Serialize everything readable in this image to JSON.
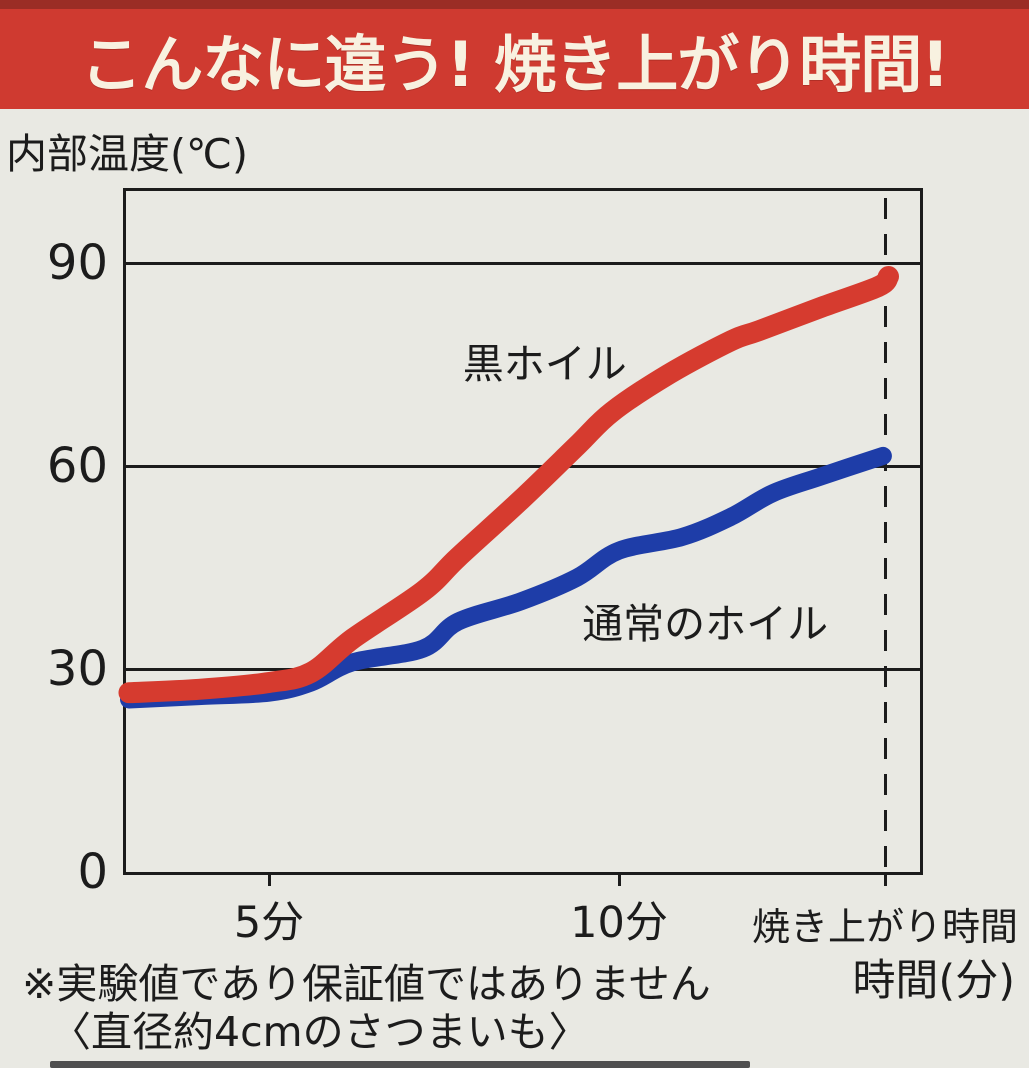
{
  "banner": {
    "title": "こんなに違う! 焼き上がり時間!",
    "bg_color": "#cf3a30",
    "top_strip_color": "#9b2d25",
    "text_color": "#f8f1e0"
  },
  "chart_data": {
    "type": "line",
    "title": "こんなに違う! 焼き上がり時間!",
    "ylabel": "内部温度(℃)",
    "xlabel": "時間(分)",
    "ylim": [
      0,
      100
    ],
    "yticks": [
      0,
      30,
      60,
      90
    ],
    "xticks": [
      {
        "value": 5,
        "label": "5分"
      },
      {
        "value": 10,
        "label": "10分"
      },
      {
        "value": 13.8,
        "label": "焼き上がり時間"
      }
    ],
    "grid": "horizontal-only",
    "dashed_vline_at": 13.8,
    "legend_position": "inline-labels",
    "background_color": "#e9e9e3",
    "axis_color": "#1c1c1c",
    "series": [
      {
        "name": "黒ホイル",
        "color": "#d63b2f",
        "stroke_width": 21,
        "points": [
          [
            3.0,
            26.5
          ],
          [
            4.0,
            27.0
          ],
          [
            5.0,
            28.0
          ],
          [
            5.6,
            29.5
          ],
          [
            6.2,
            34.5
          ],
          [
            7.2,
            41.5
          ],
          [
            7.7,
            46.5
          ],
          [
            8.6,
            55.0
          ],
          [
            9.4,
            63.0
          ],
          [
            9.9,
            68.0
          ],
          [
            10.7,
            73.5
          ],
          [
            11.6,
            78.5
          ],
          [
            12.0,
            80.0
          ],
          [
            12.9,
            83.5
          ],
          [
            13.7,
            86.5
          ],
          [
            13.85,
            88.0
          ]
        ]
      },
      {
        "name": "通常のホイル",
        "color": "#1e3da8",
        "stroke_width": 18,
        "points": [
          [
            3.0,
            25.5
          ],
          [
            4.0,
            26.0
          ],
          [
            5.0,
            26.5
          ],
          [
            5.6,
            28.0
          ],
          [
            6.2,
            31.0
          ],
          [
            7.2,
            33.0
          ],
          [
            7.7,
            37.0
          ],
          [
            8.6,
            40.0
          ],
          [
            9.4,
            43.5
          ],
          [
            10.0,
            47.5
          ],
          [
            10.9,
            49.5
          ],
          [
            11.6,
            52.5
          ],
          [
            12.2,
            56.0
          ],
          [
            12.9,
            58.5
          ],
          [
            13.77,
            61.5
          ]
        ]
      }
    ],
    "series_labels": [
      {
        "text": "黒ホイル",
        "x_min": 8.94,
        "temp": 75.7
      },
      {
        "text": "通常のホイル",
        "x_min": 11.23,
        "temp": 37.2
      }
    ]
  },
  "footer": {
    "line1": "※実験値であり保証値ではありません",
    "line2": "〈直径約4cmのさつまいも〉"
  }
}
